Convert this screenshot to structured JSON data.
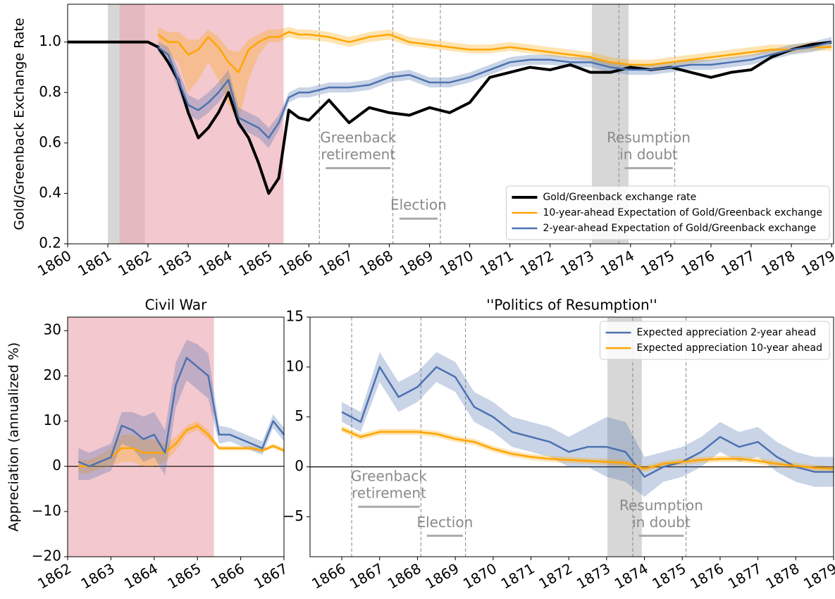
{
  "chart_data": [
    {
      "type": "line",
      "ylabel": "Gold/Greenback Exchange Rate",
      "xlim": [
        1860,
        1879.05
      ],
      "ylim": [
        0.2,
        1.15
      ],
      "xticks": [
        1860,
        1861,
        1862,
        1863,
        1864,
        1865,
        1866,
        1867,
        1868,
        1869,
        1870,
        1871,
        1872,
        1873,
        1874,
        1875,
        1876,
        1877,
        1878,
        1879
      ],
      "yticks": [
        0.2,
        0.4,
        0.6,
        0.8,
        {
          "value": 1,
          "label": "1.0"
        }
      ],
      "legend": "lower right",
      "shaded": [
        {
          "x": [
            1861.0,
            1861.92
          ],
          "color": "#bdbdbd"
        },
        {
          "x": [
            1861.29,
            1865.37
          ],
          "color": "#eba3ad"
        },
        {
          "x": [
            1873.04,
            1873.95
          ],
          "color": "#bdbdbd"
        }
      ],
      "vlines": [
        1866.26,
        1868.09,
        1869.27,
        1873.71,
        1875.1
      ],
      "annotations": [
        {
          "lines": [
            "Greenback",
            "retirement"
          ],
          "x": [
            1866.42,
            1868.03
          ],
          "y": 0.5
        },
        {
          "lines": [
            "Election"
          ],
          "x": [
            1868.25,
            1869.2
          ],
          "y": 0.3
        },
        {
          "lines": [
            "Resumption",
            "in doubt"
          ],
          "x": [
            1873.85,
            1875.05
          ],
          "y": 0.5
        }
      ],
      "x": [
        1860,
        1861,
        1862,
        1862.25,
        1862.5,
        1862.75,
        1863,
        1863.25,
        1863.5,
        1863.75,
        1864,
        1864.25,
        1864.5,
        1864.75,
        1865,
        1865.25,
        1865.5,
        1865.75,
        1866,
        1866.5,
        1867,
        1867.5,
        1868,
        1868.5,
        1869,
        1869.5,
        1870,
        1870.5,
        1871,
        1871.5,
        1872,
        1872.5,
        1873,
        1873.5,
        1874,
        1874.5,
        1875,
        1875.5,
        1876,
        1876.5,
        1877,
        1877.5,
        1878,
        1878.5,
        1879
      ],
      "series": [
        {
          "name": "Gold/Greenback exchange rate",
          "color": "#000000",
          "width": 4,
          "values": [
            1,
            1,
            1,
            0.98,
            0.92,
            0.85,
            0.72,
            0.62,
            0.66,
            0.72,
            0.8,
            0.68,
            0.62,
            0.52,
            0.4,
            0.46,
            0.73,
            0.7,
            0.69,
            0.77,
            0.68,
            0.74,
            0.72,
            0.71,
            0.74,
            0.72,
            0.76,
            0.86,
            0.88,
            0.9,
            0.89,
            0.91,
            0.88,
            0.88,
            0.9,
            0.89,
            0.9,
            0.88,
            0.86,
            0.88,
            0.89,
            0.94,
            0.97,
            0.99,
            1.0
          ]
        },
        {
          "name": "10-year-ahead Expectation of Gold/Greenback exchange",
          "color": "#ffa500",
          "width": 2.5,
          "values": [
            null,
            null,
            null,
            1.03,
            1.0,
            1.0,
            0.95,
            0.97,
            1.02,
            0.98,
            0.92,
            0.88,
            0.97,
            1.0,
            1.02,
            1.02,
            1.04,
            1.03,
            1.03,
            1.02,
            1.0,
            1.02,
            1.03,
            1.0,
            0.99,
            0.98,
            0.97,
            0.97,
            0.98,
            0.97,
            0.96,
            0.95,
            0.94,
            0.92,
            0.91,
            0.91,
            0.92,
            0.93,
            0.94,
            0.95,
            0.96,
            0.97,
            0.97,
            0.98,
            0.98
          ],
          "lower": [
            null,
            null,
            null,
            1.0,
            0.95,
            0.92,
            0.8,
            0.85,
            0.92,
            0.85,
            0.75,
            0.68,
            0.85,
            0.95,
            1.0,
            1.0,
            1.02,
            1.01,
            1.01,
            1.0,
            0.98,
            1.0,
            1.01,
            0.985,
            0.975,
            0.965,
            0.955,
            0.955,
            0.965,
            0.955,
            0.945,
            0.935,
            0.925,
            0.905,
            0.895,
            0.895,
            0.905,
            0.915,
            0.925,
            0.935,
            0.945,
            0.955,
            0.955,
            0.965,
            0.965
          ],
          "upper": [
            null,
            null,
            null,
            1.06,
            1.04,
            1.04,
            1.01,
            1.01,
            1.05,
            1.02,
            0.97,
            0.96,
            1.01,
            1.03,
            1.05,
            1.05,
            1.06,
            1.05,
            1.05,
            1.04,
            1.02,
            1.04,
            1.05,
            1.02,
            1.01,
            1.0,
            0.99,
            0.99,
            1.0,
            0.99,
            0.98,
            0.97,
            0.96,
            0.94,
            0.93,
            0.93,
            0.94,
            0.95,
            0.96,
            0.97,
            0.98,
            0.99,
            0.99,
            1.0,
            1.0
          ]
        },
        {
          "name": "2-year-ahead Expectation of Gold/Greenback exchange",
          "color": "#4c72b0",
          "width": 2.5,
          "values": [
            null,
            null,
            null,
            0.98,
            0.95,
            0.85,
            0.75,
            0.73,
            0.76,
            0.8,
            0.85,
            0.7,
            0.68,
            0.66,
            0.62,
            0.68,
            0.78,
            0.8,
            0.8,
            0.82,
            0.82,
            0.83,
            0.86,
            0.87,
            0.84,
            0.84,
            0.86,
            0.89,
            0.92,
            0.93,
            0.93,
            0.92,
            0.92,
            0.9,
            0.89,
            0.89,
            0.9,
            0.91,
            0.91,
            0.92,
            0.93,
            0.95,
            0.97,
            0.98,
            1.0
          ],
          "lower": [
            null,
            null,
            null,
            0.96,
            0.92,
            0.81,
            0.71,
            0.69,
            0.72,
            0.76,
            0.81,
            0.66,
            0.64,
            0.62,
            0.58,
            0.65,
            0.76,
            0.78,
            0.78,
            0.8,
            0.8,
            0.81,
            0.84,
            0.85,
            0.82,
            0.82,
            0.84,
            0.87,
            0.9,
            0.91,
            0.91,
            0.9,
            0.9,
            0.88,
            0.87,
            0.87,
            0.88,
            0.89,
            0.89,
            0.9,
            0.91,
            0.93,
            0.95,
            0.96,
            0.98
          ],
          "upper": [
            null,
            null,
            null,
            1.0,
            0.98,
            0.89,
            0.79,
            0.77,
            0.8,
            0.84,
            0.89,
            0.74,
            0.72,
            0.7,
            0.66,
            0.71,
            0.8,
            0.82,
            0.82,
            0.84,
            0.84,
            0.85,
            0.88,
            0.89,
            0.86,
            0.86,
            0.88,
            0.91,
            0.94,
            0.95,
            0.95,
            0.94,
            0.94,
            0.92,
            0.91,
            0.91,
            0.92,
            0.93,
            0.93,
            0.94,
            0.95,
            0.97,
            0.99,
            1.0,
            1.02
          ]
        }
      ]
    },
    {
      "type": "line",
      "title": "Civil War",
      "ylabel": "Appreciation (annualized %)",
      "xlim": [
        1862,
        1867
      ],
      "ylim": [
        -20,
        33
      ],
      "xticks": [
        1862,
        1863,
        1864,
        1865,
        1866,
        1867
      ],
      "yticks": [
        {
          "value": -20,
          "label": "−20"
        },
        {
          "value": -10,
          "label": "−10"
        },
        0,
        10,
        20,
        30
      ],
      "hlines": [
        0
      ],
      "shaded": [
        {
          "x": [
            1861.29,
            1865.38
          ],
          "color": "#eba3ad"
        }
      ],
      "x": [
        1862.25,
        1862.5,
        1862.75,
        1863,
        1863.25,
        1863.5,
        1863.75,
        1864,
        1864.25,
        1864.5,
        1864.75,
        1865,
        1865.25,
        1865.5,
        1865.75,
        1866,
        1866.25,
        1866.5,
        1866.75,
        1867
      ],
      "series": [
        {
          "color": "#ffa500",
          "width": 2.5,
          "values": [
            0,
            0,
            1,
            2,
            4,
            4,
            3,
            3,
            3,
            5,
            8,
            9,
            7,
            4,
            4,
            4,
            4,
            3.5,
            4.5,
            3.5
          ],
          "lower": [
            -1.5,
            -1.5,
            -0.5,
            0,
            1,
            1,
            0,
            0,
            1,
            3.5,
            7,
            8,
            6,
            3.5,
            3.5,
            3.5,
            3.5,
            3,
            4,
            3
          ],
          "upper": [
            1.5,
            1.5,
            2.5,
            4,
            7,
            7,
            6,
            6,
            5,
            6.5,
            9,
            10,
            8,
            4.5,
            4.5,
            4.5,
            4.5,
            4,
            5,
            4
          ]
        },
        {
          "color": "#4c72b0",
          "width": 2.5,
          "values": [
            1,
            0,
            1,
            2,
            9,
            8,
            6,
            7,
            3,
            18,
            24,
            22,
            20,
            7,
            7,
            6,
            5,
            4,
            10,
            7
          ],
          "lower": [
            -3,
            -3,
            -2,
            -1,
            5,
            4,
            1,
            2,
            -2,
            13,
            19,
            17,
            15,
            5,
            5.5,
            4.5,
            3.5,
            2.5,
            8.5,
            5.5
          ],
          "upper": [
            4,
            3,
            4,
            5,
            12,
            12,
            11,
            12,
            8,
            23,
            28,
            27,
            25,
            9,
            8.5,
            7.5,
            6.5,
            5.5,
            11.5,
            8.5
          ]
        }
      ]
    },
    {
      "type": "line",
      "title": "''Politics of Resumption''",
      "xlim": [
        1865.16,
        1879
      ],
      "ylim": [
        -9,
        15
      ],
      "xticks": [
        1866,
        1867,
        1868,
        1869,
        1870,
        1871,
        1872,
        1873,
        1874,
        1875,
        1876,
        1877,
        1878,
        1879
      ],
      "yticks": [
        {
          "value": -5,
          "label": "−5"
        },
        0,
        5,
        10,
        15
      ],
      "hlines": [
        0
      ],
      "legend": "upper right",
      "shaded": [
        {
          "x": [
            1873.02,
            1873.93
          ],
          "color": "#bdbdbd"
        }
      ],
      "vlines": [
        1866.26,
        1868.09,
        1869.27,
        1873.69,
        1875.1
      ],
      "annotations": [
        {
          "lines": [
            "Greenback",
            "retirement"
          ],
          "x": [
            1866.43,
            1868.06
          ],
          "y": -4
        },
        {
          "lines": [
            "Election"
          ],
          "x": [
            1868.25,
            1869.2
          ],
          "y": -6.9
        },
        {
          "lines": [
            "Resumption",
            "in doubt"
          ],
          "x": [
            1873.85,
            1875.04
          ],
          "y": -6.9
        }
      ],
      "x": [
        1866,
        1866.5,
        1867,
        1867.5,
        1868,
        1868.5,
        1869,
        1869.5,
        1870,
        1870.5,
        1871,
        1871.5,
        1872,
        1872.5,
        1873,
        1873.5,
        1874,
        1874.5,
        1875,
        1875.5,
        1876,
        1876.5,
        1877,
        1877.5,
        1878,
        1878.5,
        1879
      ],
      "series": [
        {
          "name": "Expected appreciation 2-year ahead",
          "color": "#4c72b0",
          "width": 2.5,
          "values": [
            5.5,
            4.5,
            10,
            7,
            8,
            10,
            9,
            6,
            5,
            3.5,
            3,
            2.5,
            1.5,
            2,
            2,
            1.5,
            -1,
            0,
            0.5,
            1.5,
            3,
            2,
            2.5,
            1,
            0,
            -0.5,
            -0.5
          ],
          "lower": [
            4.5,
            3.5,
            8.5,
            5.5,
            6.5,
            8.5,
            7.5,
            4.5,
            3.5,
            2,
            1.5,
            1,
            0,
            0,
            -1,
            -1.5,
            -3,
            -1.5,
            -1,
            0,
            1.5,
            0.5,
            1,
            -0.5,
            -1.5,
            -2,
            -2
          ],
          "upper": [
            6.5,
            5.5,
            11.5,
            8.5,
            9.5,
            11.5,
            10.5,
            7.5,
            6.5,
            5,
            4.5,
            4,
            3,
            4,
            5,
            4.5,
            1,
            1.5,
            2,
            3,
            4.5,
            3.5,
            4,
            2.5,
            1.5,
            1,
            1
          ]
        },
        {
          "name": "Expected appreciation 10-year ahead",
          "color": "#ffa500",
          "width": 2.5,
          "values": [
            3.8,
            3,
            3.5,
            3.5,
            3.5,
            3.3,
            2.8,
            2.5,
            1.8,
            1.3,
            1,
            0.8,
            0.7,
            0.6,
            0.5,
            0.4,
            -0.2,
            0.3,
            0.5,
            0.7,
            0.8,
            0.8,
            0.6,
            0.3,
            0.1,
            -0.1,
            -0.2
          ],
          "lower": [
            3.5,
            2.7,
            3.2,
            3.2,
            3.2,
            3,
            2.5,
            2.2,
            1.5,
            1,
            0.7,
            0.5,
            0.4,
            0.3,
            0.2,
            0.1,
            -0.5,
            0,
            0.2,
            0.4,
            0.5,
            0.5,
            0.3,
            0,
            -0.2,
            -0.4,
            -0.5
          ],
          "upper": [
            4.1,
            3.3,
            3.8,
            3.8,
            3.8,
            3.6,
            3.1,
            2.8,
            2.1,
            1.6,
            1.3,
            1.1,
            1,
            0.9,
            0.8,
            0.7,
            0.1,
            0.6,
            0.8,
            1,
            1.1,
            1.1,
            0.9,
            0.6,
            0.4,
            0.2,
            0.1
          ]
        }
      ]
    }
  ]
}
